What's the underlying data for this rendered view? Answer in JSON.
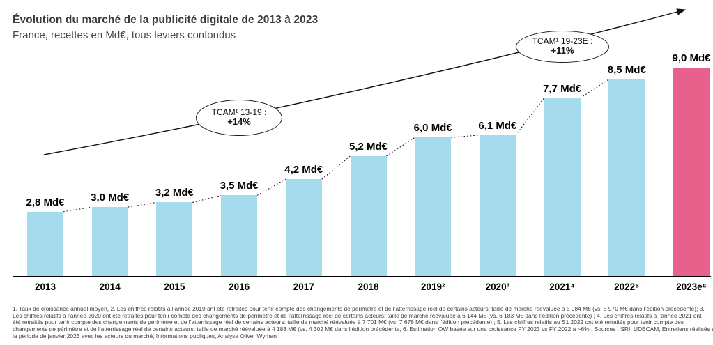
{
  "header": {
    "title": "Évolution du marché de la publicité digitale de 2013 à 2023",
    "subtitle": "France, recettes en Md€, tous leviers confondus"
  },
  "chart_data": {
    "type": "bar",
    "title": "Évolution du marché de la publicité digitale de 2013 à 2023",
    "subtitle": "France, recettes en Md€, tous leviers confondus",
    "unit": "Md€",
    "categories": [
      "2013",
      "2014",
      "2015",
      "2016",
      "2017",
      "2018",
      "2019²",
      "2020³",
      "2021⁴",
      "2022⁵",
      "2023e⁶"
    ],
    "values": [
      2.8,
      3.0,
      3.2,
      3.5,
      4.2,
      5.2,
      6.0,
      6.1,
      7.7,
      8.5,
      9.0
    ],
    "value_labels": [
      "2,8 Md€",
      "3,0 Md€",
      "3,2 Md€",
      "3,5 Md€",
      "4,2 Md€",
      "5,2 Md€",
      "6,0 Md€",
      "6,1 Md€",
      "7,7 Md€",
      "8,5 Md€",
      "9,0 Md€"
    ],
    "ylim": [
      0,
      9.0
    ],
    "grid": false,
    "legend": false,
    "bar_color": "#A5DBED",
    "highlight_color": "#E8618C",
    "highlight_index": 10,
    "connector_style": "dotted",
    "trend_arrow": true,
    "annotations": [
      {
        "label": "TCAM¹ 13-19 :",
        "value": "+14%"
      },
      {
        "label": "TCAM¹ 19-23E :",
        "value": "+11%"
      }
    ]
  },
  "footnotes": {
    "lines": [
      "1. Taux de croissance annuel moyen, 2. Les chiffres relatifs à l’année 2019 ont été retraités pour tenir compte des changements de périmètre et de l’atterrissage réel de certains acteurs: taille de marché réévaluée à 5 984 M€ (vs. 5 970 M€ dans l’édition précédente); 3.",
      "Les chiffres relatifs à l’année 2020 ont été retraités pour tenir compte des changements de périmètre et de l’atterrissage réel de certains acteurs: taille de marché réévaluée à 6 144 M€ (vs. 6 183 M€ dans l’édition précédente) ; 4. Les chiffres relatifs à l’année 2021 ont",
      "été retraités pour tenir compte des changements de périmètre et de l’atterrissage réel de certains acteurs: taille de marché réévaluée à 7 701 M€ (vs. 7 678 M€ dans l’édition précédente) ; 5. Les chiffres relatifs au S1 2022 ont été retraités pour tenir compte des",
      "changements de périmètre et de l’atterrissage réel de certains acteurs: taille de marché réévaluée à 4 183 M€ (vs. 4 302 M€ dans l’édition précédente, 6. Estimation OW basée sur une croissance FY 2023 vs FY 2022 à ~6% ; Sources : SRI, UDECAM, Entretiens réalisés sur",
      "la période de janvier 2023 avec les acteurs du marché, Informations publiques,  Analyse Oliver Wyman"
    ]
  }
}
